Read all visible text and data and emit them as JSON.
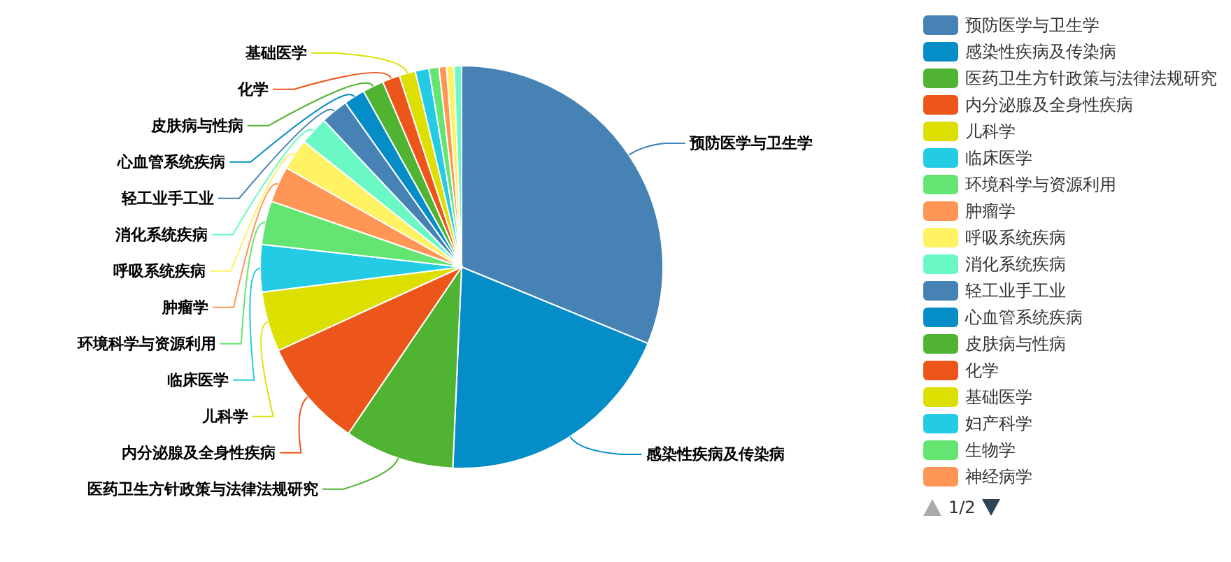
{
  "chart_data": {
    "type": "pie",
    "categories": [
      "预防医学与卫生学",
      "感染性疾病及传染病",
      "医药卫生方针政策与法律法规研究",
      "内分泌腺及全身性疾病",
      "儿科学",
      "临床医学",
      "环境科学与资源利用",
      "肿瘤学",
      "呼吸系统疾病",
      "消化系统疾病",
      "轻工业手工业",
      "心血管系统疾病",
      "皮肤病与性病",
      "化学",
      "基础医学",
      "妇产科学",
      "生物学",
      "神经病学",
      null,
      null
    ],
    "values": [
      31.2,
      19.5,
      8.8,
      8.7,
      4.8,
      3.8,
      3.5,
      2.9,
      2.5,
      2.3,
      2.2,
      1.7,
      1.7,
      1.4,
      1.3,
      1.1,
      0.8,
      0.6,
      0.6,
      0.6
    ],
    "colors": [
      "#4682b4",
      "#058dc7",
      "#50b432",
      "#ed561b",
      "#dddf00",
      "#24cbe5",
      "#64e572",
      "#ff9655",
      "#fff263",
      "#6af9c4",
      "#4682b4",
      "#058dc7",
      "#50b432",
      "#ed561b",
      "#dddf00",
      "#24cbe5",
      "#64e572",
      "#ff9655",
      "#fff263",
      "#6af9c4"
    ],
    "legend": "right",
    "annotations": [
      "1/2"
    ]
  }
}
